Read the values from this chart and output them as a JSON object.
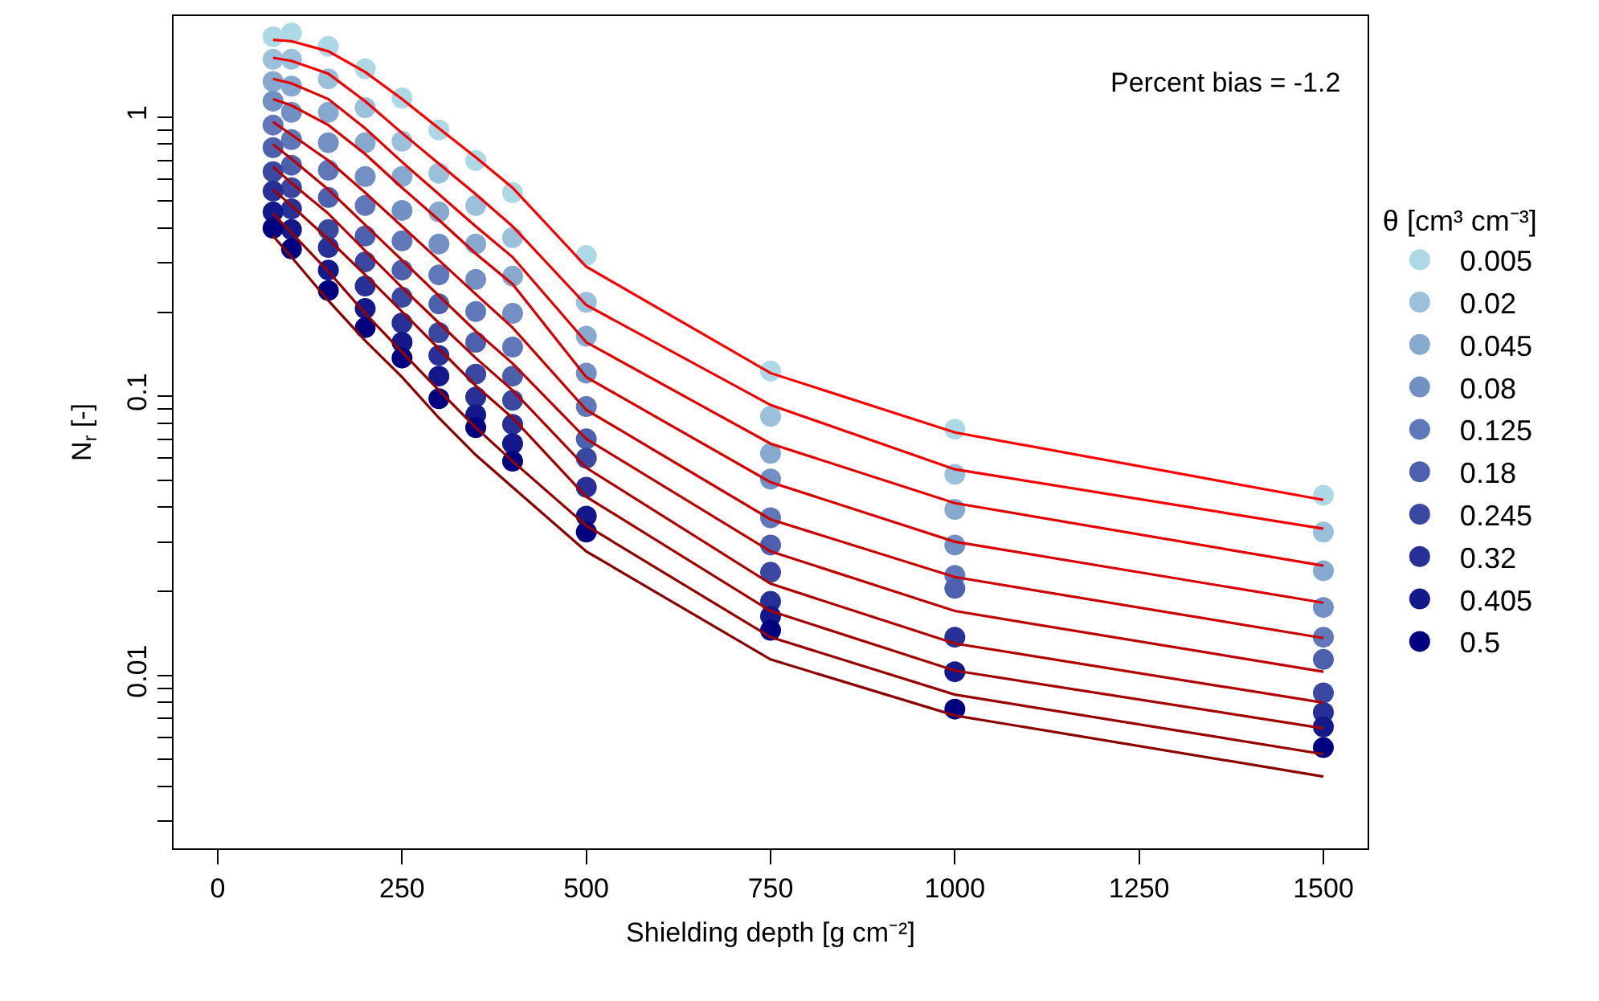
{
  "chart_data": {
    "type": "scatter",
    "xlabel": "Shielding depth [g cm⁻²]",
    "ylabel": "N$_{r}$ [-]",
    "legend_title": "θ [cm³ cm⁻³]",
    "annotations": [
      "Percent bias = -1.2"
    ],
    "x": [
      75,
      100,
      150,
      200,
      250,
      300,
      350,
      400,
      500,
      750,
      1000,
      1500
    ],
    "xlim": [
      -60,
      1560
    ],
    "xticks": [
      0,
      250,
      500,
      750,
      1000,
      1250,
      1500
    ],
    "ylim": [
      0.0024,
      2.3
    ],
    "log": true,
    "yticks": [
      {
        "value": 0.003,
        "label": null
      },
      {
        "value": 0.004,
        "label": null
      },
      {
        "value": 0.005,
        "label": null
      },
      {
        "value": 0.006,
        "label": null
      },
      {
        "value": 0.007,
        "label": null
      },
      {
        "value": 0.008,
        "label": null
      },
      {
        "value": 0.009,
        "label": null
      },
      0.01,
      {
        "value": 0.02,
        "label": null
      },
      {
        "value": 0.03,
        "label": null
      },
      {
        "value": 0.04,
        "label": null
      },
      {
        "value": 0.05,
        "label": null
      },
      {
        "value": 0.06,
        "label": null
      },
      {
        "value": 0.07,
        "label": null
      },
      {
        "value": 0.08,
        "label": null
      },
      {
        "value": 0.09,
        "label": null
      },
      0.1,
      {
        "value": 0.2,
        "label": null
      },
      {
        "value": 0.3,
        "label": null
      },
      {
        "value": 0.4,
        "label": null
      },
      {
        "value": 0.5,
        "label": null
      },
      {
        "value": 0.6,
        "label": null
      },
      {
        "value": 0.7,
        "label": null
      },
      {
        "value": 0.8,
        "label": null
      },
      {
        "value": 0.9,
        "label": null
      },
      1
    ],
    "grid": false,
    "legend": "right",
    "marker": "circle",
    "line_style": "solid",
    "series": [
      {
        "type": "line",
        "marker": "none",
        "color": "#ff0000",
        "values": [
          1.89,
          1.87,
          1.72,
          1.45,
          1.16,
          0.911,
          0.718,
          0.558,
          0.291,
          0.121,
          0.0742,
          0.0425
        ]
      },
      {
        "type": "line",
        "marker": "none",
        "color": "#f20000",
        "values": [
          1.63,
          1.59,
          1.43,
          1.14,
          0.876,
          0.681,
          0.529,
          0.406,
          0.212,
          0.093,
          0.0547,
          0.0335
        ]
      },
      {
        "type": "line",
        "marker": "none",
        "color": "#e50000",
        "values": [
          1.37,
          1.32,
          1.16,
          0.911,
          0.69,
          0.529,
          0.406,
          0.315,
          0.156,
          0.0676,
          0.0414,
          0.0247
        ]
      },
      {
        "type": "line",
        "marker": "none",
        "color": "#d80000",
        "values": [
          1.16,
          1.1,
          0.936,
          0.737,
          0.558,
          0.428,
          0.324,
          0.252,
          0.117,
          0.0492,
          0.0301,
          0.0182
        ]
      },
      {
        "type": "line",
        "marker": "none",
        "color": "#cb0000",
        "values": [
          0.961,
          0.864,
          0.699,
          0.536,
          0.406,
          0.307,
          0.232,
          0.176,
          0.0893,
          0.0362,
          0.0225,
          0.0136
        ]
      },
      {
        "type": "line",
        "marker": "none",
        "color": "#be0000",
        "values": [
          0.798,
          0.708,
          0.55,
          0.411,
          0.307,
          0.229,
          0.171,
          0.131,
          0.0703,
          0.0278,
          0.017,
          0.0103
        ]
      },
      {
        "type": "line",
        "marker": "none",
        "color": "#b20000",
        "values": [
          0.663,
          0.58,
          0.451,
          0.332,
          0.245,
          0.183,
          0.137,
          0.105,
          0.0554,
          0.0213,
          0.013,
          0.00798
        ]
      },
      {
        "type": "line",
        "marker": "none",
        "color": "#a50000",
        "values": [
          0.55,
          0.482,
          0.365,
          0.272,
          0.201,
          0.148,
          0.109,
          0.0836,
          0.0436,
          0.017,
          0.0104,
          0.00646
        ]
      },
      {
        "type": "line",
        "marker": "none",
        "color": "#980000",
        "values": [
          0.451,
          0.385,
          0.28,
          0.198,
          0.144,
          0.105,
          0.0772,
          0.0585,
          0.0344,
          0.0137,
          0.00853,
          0.00522
        ]
      },
      {
        "type": "line",
        "marker": "none",
        "color": "#8b0000",
        "values": [
          0.375,
          0.315,
          0.22,
          0.158,
          0.117,
          0.0836,
          0.0616,
          0.0472,
          0.0278,
          0.0114,
          0.00718,
          0.00434
        ]
      },
      {
        "name": "0.005",
        "color": "#add8e6",
        "values": [
          1.94,
          2.0,
          1.79,
          1.49,
          1.17,
          0.899,
          0.699,
          0.536,
          0.319,
          0.123,
          0.0762,
          0.0442
        ]
      },
      {
        "name": "0.02",
        "color": "#9ac0db",
        "values": [
          1.61,
          1.61,
          1.37,
          1.08,
          0.819,
          0.629,
          0.482,
          0.37,
          0.217,
          0.0847,
          0.0525,
          0.0326
        ]
      },
      {
        "name": "0.045",
        "color": "#87a8cf",
        "values": [
          1.34,
          1.29,
          1.04,
          0.809,
          0.612,
          0.457,
          0.351,
          0.269,
          0.164,
          0.0624,
          0.0393,
          0.0237
        ]
      },
      {
        "name": "0.08",
        "color": "#7390c4",
        "values": [
          1.14,
          1.04,
          0.809,
          0.612,
          0.463,
          0.351,
          0.262,
          0.198,
          0.121,
          0.0505,
          0.0293,
          0.0175
        ]
      },
      {
        "name": "0.125",
        "color": "#6078b9",
        "values": [
          0.936,
          0.83,
          0.645,
          0.482,
          0.36,
          0.272,
          0.201,
          0.15,
          0.0918,
          0.0367,
          0.0228,
          0.0137
        ]
      },
      {
        "name": "0.18",
        "color": "#4d60ad",
        "values": [
          0.777,
          0.672,
          0.515,
          0.375,
          0.283,
          0.214,
          0.156,
          0.118,
          0.0703,
          0.0293,
          0.0205,
          0.0114
        ]
      },
      {
        "name": "0.245",
        "color": "#3a48a2",
        "values": [
          0.637,
          0.558,
          0.395,
          0.303,
          0.226,
          0.169,
          0.12,
          0.0967,
          0.06,
          0.0234,
          null,
          0.00865
        ]
      },
      {
        "name": "0.32",
        "color": "#263097",
        "values": [
          0.543,
          0.469,
          0.341,
          0.248,
          0.183,
          0.14,
          0.0993,
          0.0793,
          0.0472,
          0.0184,
          0.0137,
          0.00737
        ]
      },
      {
        "name": "0.405",
        "color": "#13188b",
        "values": [
          0.457,
          0.395,
          0.283,
          0.206,
          0.156,
          0.118,
          0.0858,
          0.0676,
          0.0372,
          0.0163,
          0.0103,
          0.00654
        ]
      },
      {
        "name": "0.5",
        "color": "#000080",
        "values": [
          0.4,
          0.337,
          0.239,
          0.176,
          0.137,
          0.098,
          0.0772,
          0.0585,
          0.0326,
          0.0145,
          0.00757,
          0.00551
        ]
      }
    ]
  }
}
